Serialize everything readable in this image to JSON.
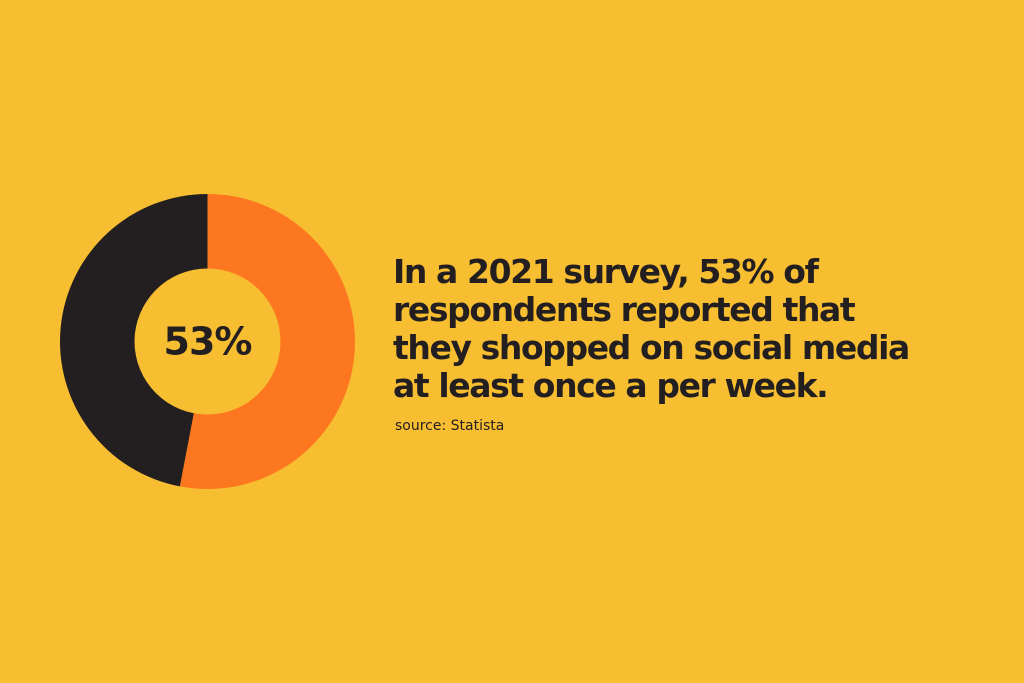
{
  "colors": {
    "background": "#F8BE31",
    "accent": "#FD7720",
    "dark": "#231F20"
  },
  "chart_data": {
    "type": "pie",
    "style": "donut",
    "center_label": "53%",
    "slices": [
      {
        "value": 53,
        "color": "#FD7720"
      },
      {
        "value": 47,
        "color": "#231F20"
      }
    ]
  },
  "headline": {
    "lines": [
      "In a 2021 survey, 53% of",
      "respondents reported that",
      "they shopped on social media",
      "at least once a per week."
    ]
  },
  "source": "source: Statista"
}
